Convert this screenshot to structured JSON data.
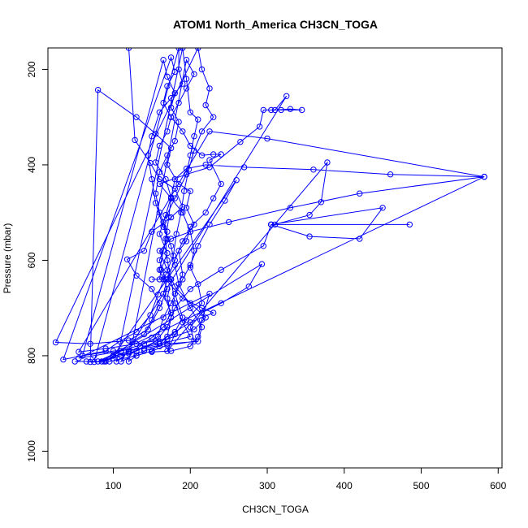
{
  "chart_data": {
    "type": "scatter",
    "title": "ATOM1 North_America CH3CN_TOGA",
    "xlabel": "CH3CN_TOGA",
    "ylabel": "Pressure (mbar)",
    "xlim": [
      15,
      605
    ],
    "ylim": [
      1035,
      155
    ],
    "y_reversed": true,
    "x_ticks": [
      100,
      200,
      300,
      400,
      500,
      600
    ],
    "y_ticks": [
      200,
      400,
      600,
      800,
      1000
    ],
    "grid": false,
    "connected_points": true,
    "colors": {
      "series": "#0000ff",
      "axes": "#000000"
    },
    "series": [
      {
        "values": [
          [
            120,
            155
          ],
          [
            128,
            348
          ],
          [
            148,
            396
          ],
          [
            160,
            430
          ],
          [
            180,
            450
          ],
          [
            190,
            488
          ],
          [
            175,
            510
          ],
          [
            150,
            540
          ],
          [
            140,
            580
          ],
          [
            118,
            598
          ],
          [
            130,
            632
          ],
          [
            150,
            660
          ],
          [
            160,
            690
          ],
          [
            150,
            725
          ],
          [
            140,
            755
          ],
          [
            125,
            770
          ],
          [
            110,
            790
          ],
          [
            100,
            800
          ],
          [
            88,
            812
          ],
          [
            70,
            813
          ],
          [
            80,
            243
          ],
          [
            130,
            300
          ],
          [
            155,
            335
          ],
          [
            175,
            365
          ],
          [
            170,
            400
          ],
          [
            185,
            440
          ],
          [
            200,
            455
          ],
          [
            195,
            490
          ],
          [
            205,
            525
          ],
          [
            190,
            560
          ],
          [
            180,
            600
          ],
          [
            170,
            640
          ],
          [
            165,
            670
          ],
          [
            175,
            710
          ],
          [
            165,
            740
          ],
          [
            150,
            762
          ],
          [
            135,
            780
          ],
          [
            120,
            792
          ],
          [
            104,
            812
          ],
          [
            190,
            155
          ],
          [
            195,
            220
          ],
          [
            200,
            290
          ],
          [
            210,
            305
          ],
          [
            205,
            340
          ],
          [
            200,
            380
          ],
          [
            195,
            420
          ],
          [
            180,
            470
          ],
          [
            165,
            520
          ],
          [
            170,
            555
          ],
          [
            160,
            600
          ],
          [
            168,
            640
          ],
          [
            190,
            680
          ],
          [
            215,
            700
          ],
          [
            230,
            710
          ],
          [
            200,
            730
          ],
          [
            160,
            770
          ],
          [
            120,
            795
          ],
          [
            90,
            810
          ],
          [
            75,
            813
          ],
          [
            185,
            155
          ],
          [
            185,
            200
          ],
          [
            190,
            230
          ],
          [
            175,
            260
          ],
          [
            160,
            290
          ],
          [
            150,
            340
          ],
          [
            145,
            380
          ],
          [
            150,
            430
          ],
          [
            155,
            480
          ],
          [
            165,
            530
          ],
          [
            175,
            570
          ],
          [
            180,
            610
          ],
          [
            185,
            650
          ],
          [
            200,
            700
          ],
          [
            215,
            740
          ],
          [
            210,
            770
          ],
          [
            170,
            775
          ],
          [
            140,
            785
          ],
          [
            100,
            790
          ],
          [
            60,
            800
          ],
          [
            165,
            180
          ],
          [
            170,
            215
          ],
          [
            180,
            250
          ],
          [
            175,
            280
          ],
          [
            185,
            310
          ],
          [
            180,
            350
          ],
          [
            170,
            380
          ],
          [
            160,
            415
          ],
          [
            155,
            460
          ],
          [
            160,
            500
          ],
          [
            170,
            540
          ],
          [
            165,
            580
          ],
          [
            160,
            620
          ],
          [
            170,
            660
          ],
          [
            160,
            700
          ],
          [
            145,
            745
          ],
          [
            120,
            768
          ],
          [
            70,
            775
          ],
          [
            25,
            772
          ],
          [
            210,
            155
          ],
          [
            215,
            200
          ],
          [
            225,
            240
          ],
          [
            220,
            275
          ],
          [
            230,
            300
          ],
          [
            215,
            330
          ],
          [
            205,
            370
          ],
          [
            198,
            410
          ],
          [
            192,
            455
          ],
          [
            188,
            500
          ],
          [
            182,
            545
          ],
          [
            178,
            590
          ],
          [
            168,
            630
          ],
          [
            158,
            672
          ],
          [
            148,
            715
          ],
          [
            130,
            750
          ],
          [
            108,
            770
          ],
          [
            90,
            790
          ],
          [
            60,
            800
          ],
          [
            35,
            808
          ],
          [
            175,
            175
          ],
          [
            180,
            205
          ],
          [
            170,
            235
          ],
          [
            165,
            270
          ],
          [
            175,
            300
          ],
          [
            170,
            330
          ],
          [
            160,
            360
          ],
          [
            155,
            395
          ],
          [
            168,
            430
          ],
          [
            175,
            468
          ],
          [
            168,
            505
          ],
          [
            160,
            545
          ],
          [
            170,
            585
          ],
          [
            162,
            620
          ],
          [
            160,
            640
          ],
          [
            150,
            640
          ],
          [
            165,
            640
          ],
          [
            175,
            640
          ],
          [
            170,
            680
          ],
          [
            175,
            720
          ],
          [
            170,
            760
          ],
          [
            150,
            790
          ],
          [
            130,
            800
          ],
          [
            120,
            812
          ],
          [
            195,
            180
          ],
          [
            205,
            210
          ],
          [
            195,
            240
          ],
          [
            185,
            270
          ],
          [
            175,
            300
          ],
          [
            190,
            330
          ],
          [
            200,
            360
          ],
          [
            215,
            380
          ],
          [
            230,
            378
          ],
          [
            240,
            378
          ],
          [
            225,
            390
          ],
          [
            240,
            440
          ],
          [
            230,
            470
          ],
          [
            220,
            500
          ],
          [
            200,
            530
          ],
          [
            195,
            560
          ],
          [
            185,
            580
          ],
          [
            190,
            630
          ],
          [
            180,
            670
          ],
          [
            190,
            720
          ],
          [
            180,
            750
          ],
          [
            160,
            780
          ],
          [
            140,
            790
          ],
          [
            110,
            812
          ],
          [
            325,
            256
          ],
          [
            310,
            285
          ],
          [
            330,
            283
          ],
          [
            345,
            285
          ],
          [
            318,
            285
          ],
          [
            305,
            285
          ],
          [
            295,
            285
          ],
          [
            290,
            320
          ],
          [
            265,
            352
          ],
          [
            225,
            405
          ],
          [
            195,
            420
          ],
          [
            160,
            440
          ],
          [
            175,
            470
          ],
          [
            190,
            500
          ],
          [
            200,
            540
          ],
          [
            205,
            580
          ],
          [
            200,
            615
          ],
          [
            210,
            650
          ],
          [
            215,
            690
          ],
          [
            195,
            725
          ],
          [
            180,
            755
          ],
          [
            170,
            790
          ],
          [
            378,
            395
          ],
          [
            370,
            478
          ],
          [
            355,
            505
          ],
          [
            310,
            525
          ],
          [
            305,
            525
          ],
          [
            450,
            490
          ],
          [
            420,
            555
          ],
          [
            355,
            550
          ],
          [
            305,
            525
          ],
          [
            485,
            525
          ],
          [
            305,
            525
          ],
          [
            295,
            570
          ],
          [
            240,
            620
          ],
          [
            200,
            660
          ],
          [
            180,
            700
          ],
          [
            170,
            740
          ],
          [
            155,
            770
          ],
          [
            130,
            790
          ],
          [
            110,
            800
          ],
          [
            80,
            812
          ],
          [
            582,
            425
          ],
          [
            420,
            460
          ],
          [
            330,
            490
          ],
          [
            250,
            520
          ],
          [
            200,
            540
          ],
          [
            175,
            555
          ],
          [
            160,
            580
          ],
          [
            170,
            620
          ],
          [
            180,
            655
          ],
          [
            200,
            690
          ],
          [
            220,
            720
          ],
          [
            205,
            745
          ],
          [
            170,
            765
          ],
          [
            130,
            775
          ],
          [
            90,
            785
          ],
          [
            55,
            792
          ],
          [
            225,
            330
          ],
          [
            300,
            345
          ],
          [
            582,
            425
          ],
          [
            460,
            420
          ],
          [
            360,
            410
          ],
          [
            270,
            405
          ],
          [
            220,
            400
          ],
          [
            195,
            408
          ],
          [
            180,
            430
          ],
          [
            175,
            470
          ],
          [
            172,
            510
          ],
          [
            168,
            555
          ],
          [
            170,
            600
          ],
          [
            175,
            640
          ],
          [
            180,
            690
          ],
          [
            190,
            730
          ],
          [
            200,
            760
          ],
          [
            160,
            775
          ],
          [
            120,
            790
          ],
          [
            85,
            812
          ],
          [
            293,
            608
          ],
          [
            276,
            655
          ],
          [
            240,
            690
          ],
          [
            215,
            710
          ],
          [
            200,
            740
          ],
          [
            205,
            770
          ],
          [
            170,
            778
          ],
          [
            150,
            790
          ],
          [
            130,
            800
          ],
          [
            95,
            812
          ],
          [
            260,
            432
          ],
          [
            245,
            475
          ],
          [
            225,
            525
          ],
          [
            210,
            570
          ],
          [
            200,
            610
          ],
          [
            190,
            640
          ],
          [
            175,
            690
          ],
          [
            165,
            720
          ],
          [
            158,
            760
          ],
          [
            140,
            775
          ],
          [
            110,
            790
          ],
          [
            75,
            800
          ],
          [
            55,
            805
          ],
          [
            225,
            670
          ],
          [
            215,
            725
          ],
          [
            210,
            760
          ],
          [
            200,
            780
          ],
          [
            175,
            790
          ],
          [
            150,
            792
          ],
          [
            120,
            795
          ],
          [
            100,
            800
          ],
          [
            90,
            812
          ],
          [
            65,
            812
          ],
          [
            50,
            812
          ]
        ]
      }
    ]
  }
}
